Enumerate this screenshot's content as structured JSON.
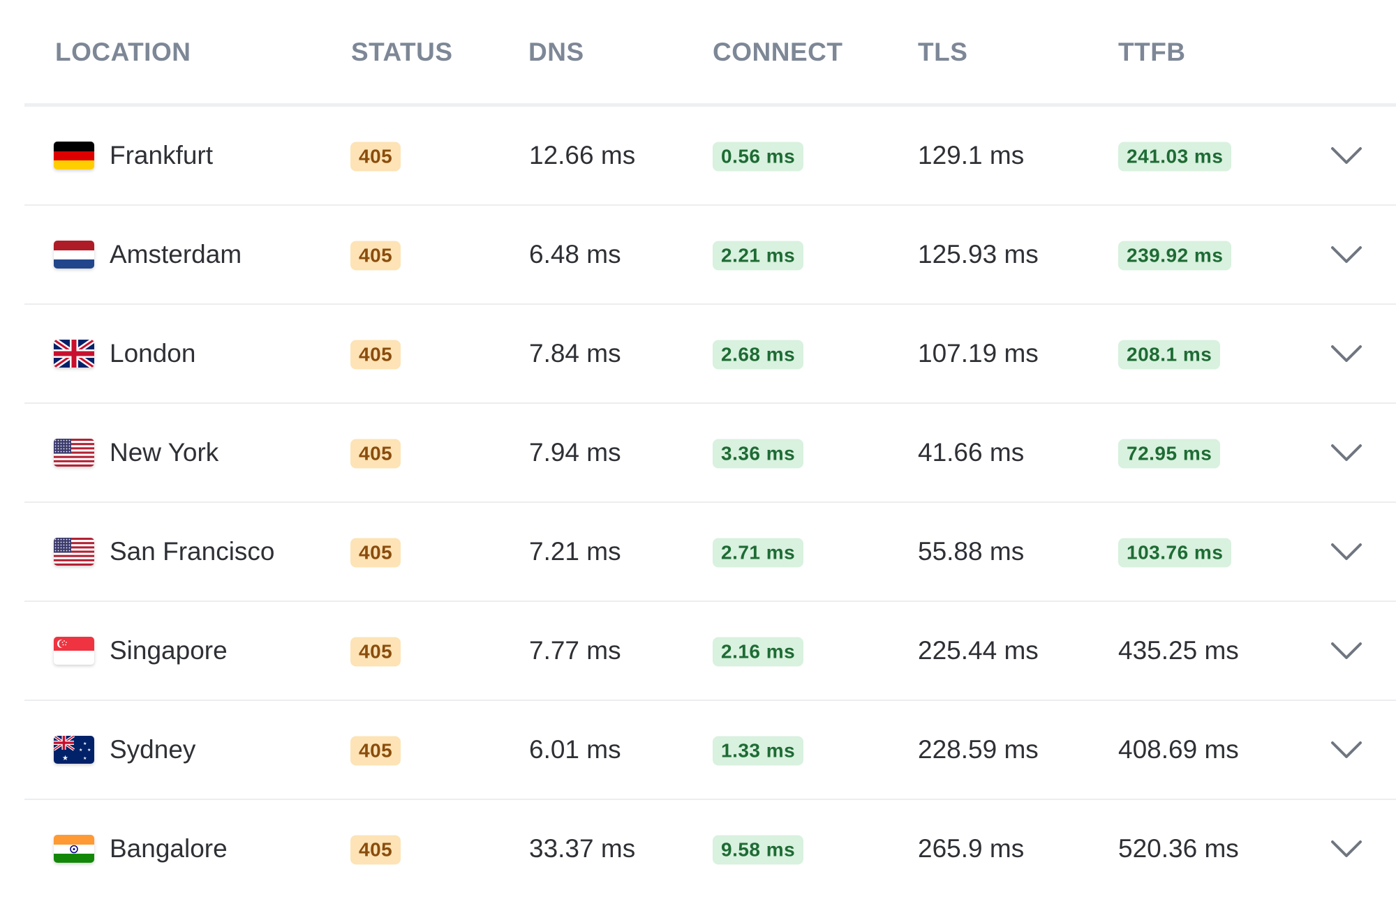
{
  "headers": {
    "location": "LOCATION",
    "status": "STATUS",
    "dns": "DNS",
    "connect": "CONNECT",
    "tls": "TLS",
    "ttfb": "TTFB"
  },
  "rows": [
    {
      "location": "Frankfurt",
      "flag": "germany-flag-icon",
      "status": "405",
      "dns": "12.66 ms",
      "connect": "0.56 ms",
      "connect_fast": true,
      "tls": "129.1 ms",
      "ttfb": "241.03 ms",
      "ttfb_fast": true
    },
    {
      "location": "Amsterdam",
      "flag": "netherlands-flag-icon",
      "status": "405",
      "dns": "6.48 ms",
      "connect": "2.21 ms",
      "connect_fast": true,
      "tls": "125.93 ms",
      "ttfb": "239.92 ms",
      "ttfb_fast": true
    },
    {
      "location": "London",
      "flag": "uk-flag-icon",
      "status": "405",
      "dns": "7.84 ms",
      "connect": "2.68 ms",
      "connect_fast": true,
      "tls": "107.19 ms",
      "ttfb": "208.1 ms",
      "ttfb_fast": true
    },
    {
      "location": "New York",
      "flag": "usa-flag-icon",
      "status": "405",
      "dns": "7.94 ms",
      "connect": "3.36 ms",
      "connect_fast": true,
      "tls": "41.66 ms",
      "ttfb": "72.95 ms",
      "ttfb_fast": true
    },
    {
      "location": "San Francisco",
      "flag": "usa-flag-icon",
      "status": "405",
      "dns": "7.21 ms",
      "connect": "2.71 ms",
      "connect_fast": true,
      "tls": "55.88 ms",
      "ttfb": "103.76 ms",
      "ttfb_fast": true
    },
    {
      "location": "Singapore",
      "flag": "singapore-flag-icon",
      "status": "405",
      "dns": "7.77 ms",
      "connect": "2.16 ms",
      "connect_fast": true,
      "tls": "225.44 ms",
      "ttfb": "435.25 ms",
      "ttfb_fast": false
    },
    {
      "location": "Sydney",
      "flag": "australia-flag-icon",
      "status": "405",
      "dns": "6.01 ms",
      "connect": "1.33 ms",
      "connect_fast": true,
      "tls": "228.59 ms",
      "ttfb": "408.69 ms",
      "ttfb_fast": false
    },
    {
      "location": "Bangalore",
      "flag": "india-flag-icon",
      "status": "405",
      "dns": "33.37 ms",
      "connect": "9.58 ms",
      "connect_fast": true,
      "tls": "265.9 ms",
      "ttfb": "520.36 ms",
      "ttfb_fast": false
    }
  ],
  "colors": {
    "header_text": "#7d8796",
    "status_badge_bg": "#fde3b5",
    "status_badge_text": "#8a4d0d",
    "fast_badge_bg": "#d9f1df",
    "fast_badge_text": "#1e6b34"
  }
}
